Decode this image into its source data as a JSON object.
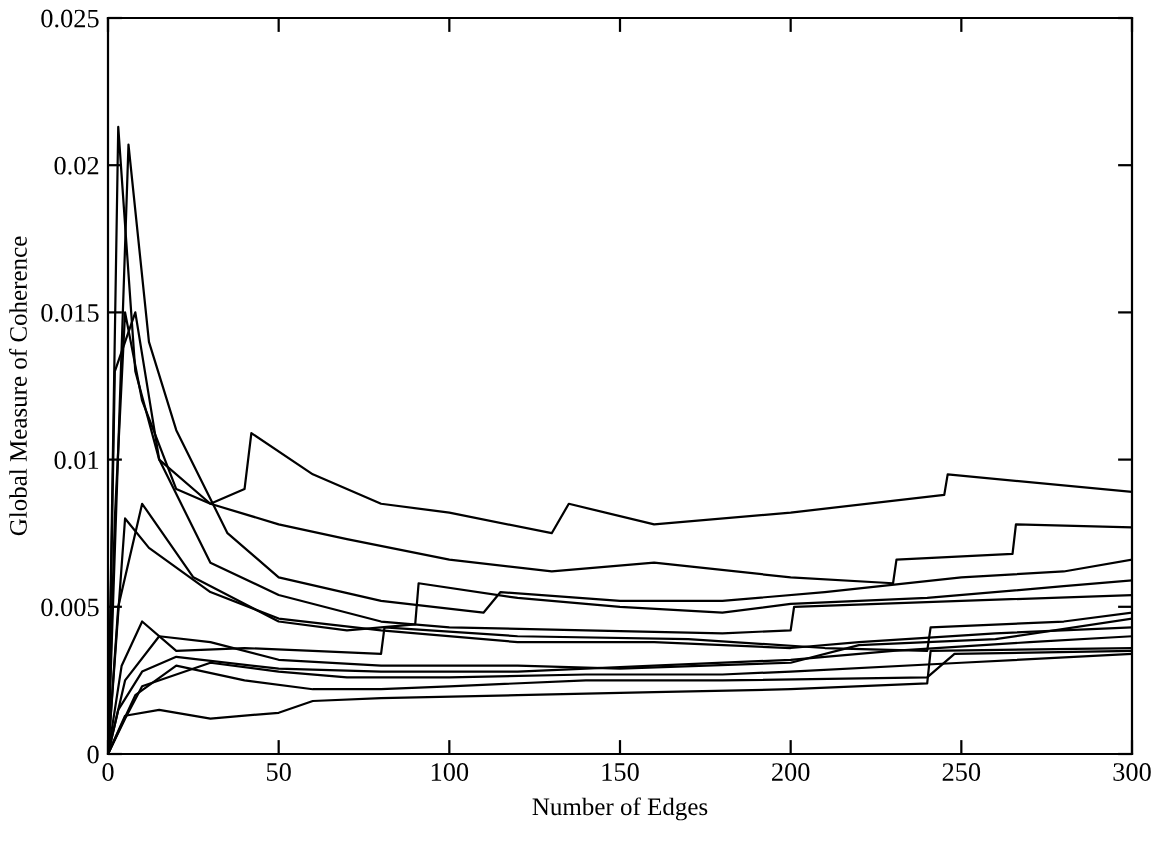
{
  "chart_data": {
    "type": "line",
    "xlabel": "Number of Edges",
    "ylabel": "Global Measure of Coherence",
    "xlim": [
      0,
      300
    ],
    "xticks": [
      0,
      50,
      100,
      150,
      200,
      250,
      300
    ],
    "ylim": [
      0,
      0.025
    ],
    "yticks": [
      0,
      0.005,
      0.01,
      0.015,
      0.02,
      0.025
    ],
    "grid": false,
    "legend": false,
    "marker": "none",
    "line_style": "solid",
    "series": [
      {
        "color": "#000000",
        "x": [
          0,
          2,
          5,
          10,
          20,
          30,
          40,
          42,
          60,
          80,
          100,
          130,
          135,
          160,
          200,
          245,
          246,
          300
        ],
        "values": [
          0,
          0.008,
          0.015,
          0.012,
          0.009,
          0.0085,
          0.009,
          0.0109,
          0.0095,
          0.0085,
          0.0082,
          0.0075,
          0.0085,
          0.0078,
          0.0082,
          0.0088,
          0.0095,
          0.0089
        ]
      },
      {
        "color": "#000000",
        "x": [
          0,
          3,
          8,
          15,
          30,
          50,
          70,
          100,
          130,
          160,
          200,
          230,
          231,
          265,
          266,
          300
        ],
        "values": [
          0,
          0.0213,
          0.013,
          0.01,
          0.0085,
          0.0078,
          0.0073,
          0.0066,
          0.0062,
          0.0065,
          0.006,
          0.0058,
          0.0066,
          0.0068,
          0.0078,
          0.0077
        ]
      },
      {
        "color": "#000000",
        "x": [
          0,
          6,
          12,
          20,
          35,
          50,
          80,
          110,
          115,
          150,
          180,
          210,
          250,
          280,
          300
        ],
        "values": [
          0,
          0.0207,
          0.014,
          0.011,
          0.0075,
          0.006,
          0.0052,
          0.0048,
          0.0055,
          0.0052,
          0.0052,
          0.0055,
          0.006,
          0.0062,
          0.0066
        ]
      },
      {
        "color": "#000000",
        "x": [
          0,
          2,
          8,
          15,
          30,
          50,
          80,
          100,
          140,
          180,
          200,
          201,
          250,
          300
        ],
        "values": [
          0,
          0.013,
          0.015,
          0.01,
          0.0065,
          0.0054,
          0.0045,
          0.0043,
          0.0042,
          0.0041,
          0.0042,
          0.005,
          0.0052,
          0.0054
        ]
      },
      {
        "color": "#000000",
        "x": [
          0,
          3,
          10,
          25,
          50,
          70,
          90,
          91,
          120,
          150,
          180,
          200,
          240,
          280,
          300
        ],
        "values": [
          0,
          0.005,
          0.0085,
          0.006,
          0.0045,
          0.0042,
          0.0044,
          0.0058,
          0.0053,
          0.005,
          0.0048,
          0.0051,
          0.0053,
          0.0057,
          0.0059
        ]
      },
      {
        "color": "#000000",
        "x": [
          0,
          5,
          12,
          30,
          50,
          80,
          120,
          160,
          200,
          220,
          260,
          300
        ],
        "values": [
          0,
          0.008,
          0.007,
          0.0055,
          0.0046,
          0.0042,
          0.0038,
          0.0038,
          0.0036,
          0.0038,
          0.0041,
          0.0043
        ]
      },
      {
        "color": "#000000",
        "x": [
          0,
          4,
          10,
          20,
          40,
          60,
          80,
          81,
          120,
          170,
          210,
          240,
          241,
          280,
          300
        ],
        "values": [
          0,
          0.003,
          0.0045,
          0.0035,
          0.0036,
          0.0035,
          0.0034,
          0.0043,
          0.004,
          0.0039,
          0.0036,
          0.0035,
          0.0043,
          0.0045,
          0.0048
        ]
      },
      {
        "color": "#000000",
        "x": [
          0,
          5,
          15,
          30,
          50,
          80,
          120,
          150,
          200,
          220,
          260,
          300
        ],
        "values": [
          0,
          0.0025,
          0.004,
          0.0038,
          0.0032,
          0.003,
          0.003,
          0.0029,
          0.0031,
          0.0037,
          0.0039,
          0.0046
        ]
      },
      {
        "color": "#000000",
        "x": [
          0,
          3,
          10,
          20,
          50,
          80,
          120,
          160,
          200,
          230,
          270,
          300
        ],
        "values": [
          0,
          0.0015,
          0.0028,
          0.0033,
          0.0029,
          0.0028,
          0.0028,
          0.003,
          0.0032,
          0.0035,
          0.0038,
          0.004
        ]
      },
      {
        "color": "#000000",
        "x": [
          0,
          5,
          10,
          30,
          50,
          70,
          100,
          140,
          180,
          200,
          250,
          300
        ],
        "values": [
          0,
          0.0012,
          0.0023,
          0.0031,
          0.0028,
          0.0026,
          0.0026,
          0.0027,
          0.0027,
          0.0028,
          0.0031,
          0.0034
        ]
      },
      {
        "color": "#000000",
        "x": [
          0,
          8,
          20,
          40,
          60,
          80,
          100,
          140,
          180,
          240,
          248,
          300
        ],
        "values": [
          0,
          0.002,
          0.003,
          0.0025,
          0.0022,
          0.0022,
          0.0023,
          0.0025,
          0.0025,
          0.0026,
          0.0034,
          0.0035
        ]
      },
      {
        "color": "#000000",
        "x": [
          0,
          5,
          15,
          30,
          50,
          60,
          80,
          120,
          160,
          200,
          240,
          241,
          300
        ],
        "values": [
          0,
          0.0013,
          0.0015,
          0.0012,
          0.0014,
          0.0018,
          0.0019,
          0.002,
          0.0021,
          0.0022,
          0.0024,
          0.0035,
          0.0036
        ]
      }
    ]
  }
}
